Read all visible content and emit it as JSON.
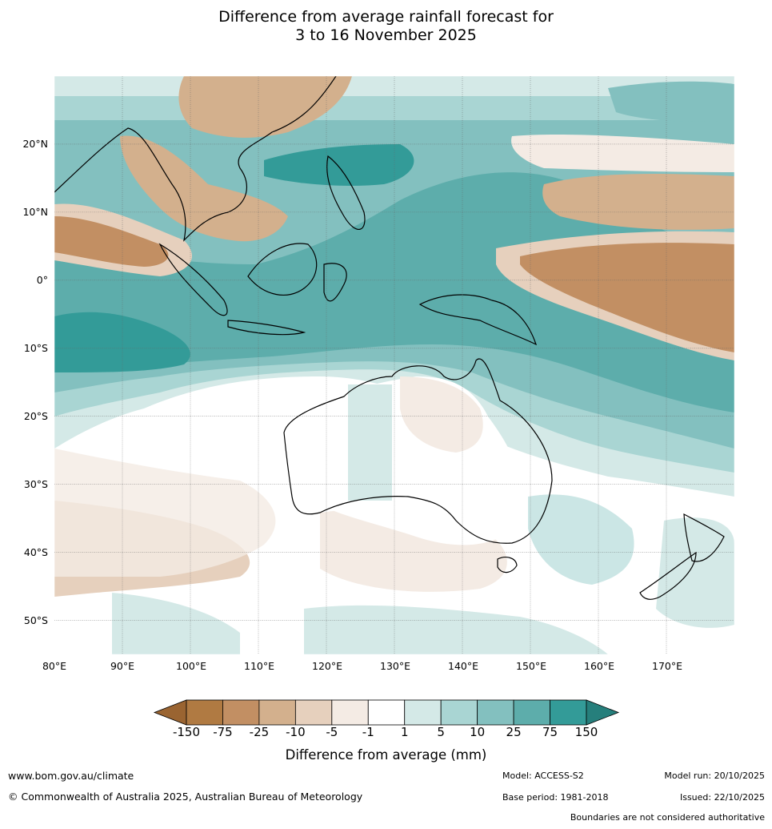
{
  "title_line1": "Difference from average rainfall forecast for",
  "title_line2": "3 to 16 November 2025",
  "map": {
    "lon_labels": [
      "80°E",
      "90°E",
      "100°E",
      "110°E",
      "120°E",
      "130°E",
      "140°E",
      "150°E",
      "160°E",
      "170°E"
    ],
    "lat_labels": [
      "20°N",
      "10°N",
      "0°",
      "10°S",
      "20°S",
      "30°S",
      "40°S",
      "50°S"
    ],
    "lon_range": [
      80,
      180
    ],
    "lat_range": [
      -55,
      30
    ],
    "note": ""
  },
  "colorbar": {
    "ticks": [
      "-150",
      "-75",
      "-25",
      "-10",
      "-5",
      "-1",
      "1",
      "5",
      "10",
      "25",
      "75",
      "150"
    ],
    "colors": [
      "#9a6431",
      "#b07a42",
      "#c28f63",
      "#d3b08d",
      "#e6d0bd",
      "#f4ebe4",
      "#ffffff",
      "#d4e9e7",
      "#a9d5d3",
      "#83c0bf",
      "#5dadab",
      "#339b98",
      "#267f7c"
    ],
    "label": "Difference from average (mm)"
  },
  "footer": {
    "website": "www.bom.gov.au/climate",
    "copyright": "© Commonwealth of Australia 2025, Australian Bureau of Meteorology",
    "model": "Model: ACCESS-S2",
    "base_period": "Base period: 1981-2018",
    "model_run": "Model run: 20/10/2025",
    "issued": "Issued: 22/10/2025",
    "disclaimer": "Boundaries are not considered authoritative"
  }
}
